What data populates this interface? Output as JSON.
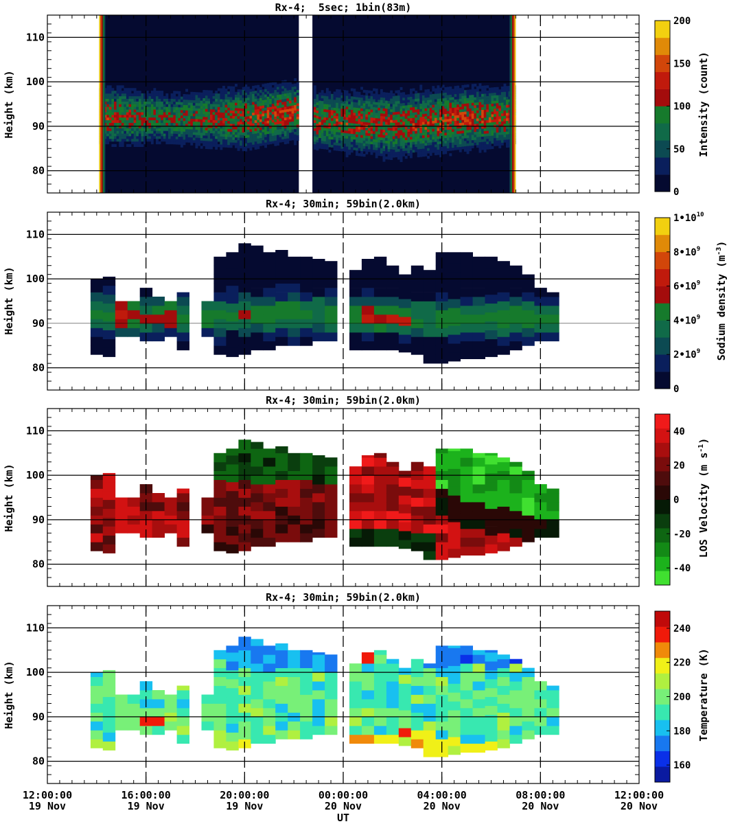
{
  "x_axis": {
    "label": "UT",
    "ticks": [
      {
        "time": "12:00:00",
        "date": "19 Nov",
        "hour": 0
      },
      {
        "time": "16:00:00",
        "date": "19 Nov",
        "hour": 4
      },
      {
        "time": "20:00:00",
        "date": "19 Nov",
        "hour": 8
      },
      {
        "time": "00:00:00",
        "date": "20 Nov",
        "hour": 12
      },
      {
        "time": "04:00:00",
        "date": "20 Nov",
        "hour": 16
      },
      {
        "time": "08:00:00",
        "date": "20 Nov",
        "hour": 20
      },
      {
        "time": "12:00:00",
        "date": "20 Nov",
        "hour": 24
      }
    ]
  },
  "chart_data": [
    {
      "type": "heatmap",
      "title": "Rx-4;  5sec; 1bin(83m)",
      "ylabel": "Height (km)",
      "ylim": [
        75,
        115
      ],
      "yticks": [
        "80",
        "90",
        "100",
        "110"
      ],
      "colorbar": {
        "label": "Intensity (count)",
        "range": [
          0,
          200
        ],
        "ticks": [
          {
            "v": 0,
            "t": "0"
          },
          {
            "v": 50,
            "t": "50"
          },
          {
            "v": 100,
            "t": "100"
          },
          {
            "v": 150,
            "t": "150"
          },
          {
            "v": 200,
            "t": "200"
          }
        ],
        "colors": [
          "#050a30",
          "#0a1f5c",
          "#0c4a52",
          "#106a48",
          "#167a2c",
          "#a40c0c",
          "#c01a0c",
          "#d2460a",
          "#e08a08",
          "#f2d010"
        ]
      },
      "data_window_hours": [
        2.1,
        19.0
      ],
      "gap_hours": [
        10.2,
        10.75
      ],
      "layer_profile": [
        {
          "hour": 2.5,
          "top_km": 98.0,
          "bottom_km": 86.0,
          "peak": 120
        },
        {
          "hour": 5.0,
          "top_km": 97.0,
          "bottom_km": 86.0,
          "peak": 95
        },
        {
          "hour": 8.0,
          "top_km": 98.0,
          "bottom_km": 85.0,
          "peak": 120
        },
        {
          "hour": 10.0,
          "top_km": 99.0,
          "bottom_km": 87.0,
          "peak": 130
        },
        {
          "hour": 11.0,
          "top_km": 97.0,
          "bottom_km": 85.0,
          "peak": 120
        },
        {
          "hour": 14.0,
          "top_km": 97.0,
          "bottom_km": 83.0,
          "peak": 120
        },
        {
          "hour": 17.0,
          "top_km": 98.0,
          "bottom_km": 85.0,
          "peak": 130
        },
        {
          "hour": 18.9,
          "top_km": 98.0,
          "bottom_km": 86.0,
          "peak": 120
        }
      ]
    },
    {
      "type": "heatmap",
      "title": "Rx-4; 30min; 59bin(2.0km)",
      "ylabel": "Height (km)",
      "ylim": [
        75,
        115
      ],
      "yticks": [
        "80",
        "90",
        "100",
        "110"
      ],
      "colorbar": {
        "label": "Sodium density (m^-3)",
        "range": [
          0,
          10000000000
        ],
        "ticks": [
          {
            "v": 0,
            "t": "0"
          },
          {
            "v": 2000000000,
            "t": "2•10^9"
          },
          {
            "v": 4000000000,
            "t": "4•10^9"
          },
          {
            "v": 6000000000,
            "t": "6•10^9"
          },
          {
            "v": 8000000000,
            "t": "8•10^9"
          },
          {
            "v": 10000000000,
            "t": "1•10^10"
          }
        ],
        "colors": [
          "#050a30",
          "#0a1f5c",
          "#0c4a52",
          "#106a48",
          "#167a2c",
          "#a40c0c",
          "#c01a0c",
          "#d2460a",
          "#e08a08",
          "#f2d010"
        ]
      },
      "field": "density",
      "column_width_hours": 0.5,
      "columns": [
        {
          "hour": 2.0,
          "bottom_km": 83,
          "top_km": 100
        },
        {
          "hour": 2.5,
          "bottom_km": 82.5,
          "top_km": 100.5
        },
        {
          "hour": 3.0,
          "bottom_km": 87,
          "top_km": 95
        },
        {
          "hour": 3.5,
          "bottom_km": 87,
          "top_km": 95
        },
        {
          "hour": 4.0,
          "bottom_km": 86,
          "top_km": 98
        },
        {
          "hour": 4.5,
          "bottom_km": 86,
          "top_km": 96
        },
        {
          "hour": 5.0,
          "bottom_km": 87,
          "top_km": 95
        },
        {
          "hour": 5.5,
          "bottom_km": 84,
          "top_km": 97
        },
        {
          "hour": 6.5,
          "bottom_km": 87,
          "top_km": 95
        },
        {
          "hour": 7.0,
          "bottom_km": 83,
          "top_km": 105
        },
        {
          "hour": 7.5,
          "bottom_km": 82.5,
          "top_km": 106
        },
        {
          "hour": 8.0,
          "bottom_km": 83,
          "top_km": 108
        },
        {
          "hour": 8.5,
          "bottom_km": 84,
          "top_km": 107.5
        },
        {
          "hour": 9.0,
          "bottom_km": 84,
          "top_km": 106
        },
        {
          "hour": 9.5,
          "bottom_km": 85,
          "top_km": 106.5
        },
        {
          "hour": 10.0,
          "bottom_km": 85,
          "top_km": 105
        },
        {
          "hour": 10.5,
          "bottom_km": 85,
          "top_km": 105
        },
        {
          "hour": 11.0,
          "bottom_km": 86,
          "top_km": 104.5
        },
        {
          "hour": 11.5,
          "bottom_km": 86,
          "top_km": 104
        },
        {
          "hour": 12.5,
          "bottom_km": 84,
          "top_km": 102
        },
        {
          "hour": 13.0,
          "bottom_km": 84,
          "top_km": 104.5
        },
        {
          "hour": 13.5,
          "bottom_km": 84,
          "top_km": 105
        },
        {
          "hour": 14.0,
          "bottom_km": 84,
          "top_km": 103
        },
        {
          "hour": 14.5,
          "bottom_km": 83.5,
          "top_km": 101
        },
        {
          "hour": 15.0,
          "bottom_km": 83,
          "top_km": 103
        },
        {
          "hour": 15.5,
          "bottom_km": 81,
          "top_km": 102
        },
        {
          "hour": 16.0,
          "bottom_km": 81,
          "top_km": 106
        },
        {
          "hour": 16.5,
          "bottom_km": 81.5,
          "top_km": 106
        },
        {
          "hour": 17.0,
          "bottom_km": 82,
          "top_km": 106
        },
        {
          "hour": 17.5,
          "bottom_km": 82,
          "top_km": 105
        },
        {
          "hour": 18.0,
          "bottom_km": 82.5,
          "top_km": 105
        },
        {
          "hour": 18.5,
          "bottom_km": 83,
          "top_km": 104
        },
        {
          "hour": 19.0,
          "bottom_km": 84,
          "top_km": 103
        },
        {
          "hour": 19.5,
          "bottom_km": 85,
          "top_km": 101
        },
        {
          "hour": 20.0,
          "bottom_km": 86,
          "top_km": 98
        },
        {
          "hour": 20.5,
          "bottom_km": 86,
          "top_km": 97
        }
      ]
    },
    {
      "type": "heatmap",
      "title": "Rx-4; 30min; 59bin(2.0km)",
      "ylabel": "Height (km)",
      "ylim": [
        75,
        115
      ],
      "yticks": [
        "80",
        "90",
        "100",
        "110"
      ],
      "colorbar": {
        "label": "LOS Velocity (m s^-1)",
        "range": [
          -50,
          50
        ],
        "ticks": [
          {
            "v": -40,
            "t": "-40"
          },
          {
            "v": -20,
            "t": "-20"
          },
          {
            "v": 0,
            "t": "0"
          },
          {
            "v": 20,
            "t": "20"
          },
          {
            "v": 40,
            "t": "40"
          }
        ],
        "colors": [
          "#40e030",
          "#1cb21c",
          "#138a16",
          "#0e6612",
          "#0a3e0e",
          "#061a06",
          "#2a0806",
          "#4e0c0c",
          "#7a0c0c",
          "#a80e0e",
          "#d31212",
          "#f01a1a"
        ]
      },
      "field": "velocity",
      "column_width_hours": 0.5,
      "columns": [
        {
          "hour": 2.0,
          "bottom_km": 83,
          "top_km": 100
        },
        {
          "hour": 2.5,
          "bottom_km": 82.5,
          "top_km": 100.5
        },
        {
          "hour": 3.0,
          "bottom_km": 87,
          "top_km": 95
        },
        {
          "hour": 3.5,
          "bottom_km": 87,
          "top_km": 95
        },
        {
          "hour": 4.0,
          "bottom_km": 86,
          "top_km": 98
        },
        {
          "hour": 4.5,
          "bottom_km": 86,
          "top_km": 96
        },
        {
          "hour": 5.0,
          "bottom_km": 87,
          "top_km": 95
        },
        {
          "hour": 5.5,
          "bottom_km": 84,
          "top_km": 97
        },
        {
          "hour": 6.5,
          "bottom_km": 87,
          "top_km": 95
        },
        {
          "hour": 7.0,
          "bottom_km": 83,
          "top_km": 105
        },
        {
          "hour": 7.5,
          "bottom_km": 82.5,
          "top_km": 106
        },
        {
          "hour": 8.0,
          "bottom_km": 83,
          "top_km": 108
        },
        {
          "hour": 8.5,
          "bottom_km": 84,
          "top_km": 107.5
        },
        {
          "hour": 9.0,
          "bottom_km": 84,
          "top_km": 106
        },
        {
          "hour": 9.5,
          "bottom_km": 85,
          "top_km": 106.5
        },
        {
          "hour": 10.0,
          "bottom_km": 85,
          "top_km": 105
        },
        {
          "hour": 10.5,
          "bottom_km": 85,
          "top_km": 105
        },
        {
          "hour": 11.0,
          "bottom_km": 86,
          "top_km": 104.5
        },
        {
          "hour": 11.5,
          "bottom_km": 86,
          "top_km": 104
        },
        {
          "hour": 12.5,
          "bottom_km": 84,
          "top_km": 102
        },
        {
          "hour": 13.0,
          "bottom_km": 84,
          "top_km": 104.5
        },
        {
          "hour": 13.5,
          "bottom_km": 84,
          "top_km": 105
        },
        {
          "hour": 14.0,
          "bottom_km": 84,
          "top_km": 103
        },
        {
          "hour": 14.5,
          "bottom_km": 83.5,
          "top_km": 101
        },
        {
          "hour": 15.0,
          "bottom_km": 83,
          "top_km": 103
        },
        {
          "hour": 15.5,
          "bottom_km": 81,
          "top_km": 102
        },
        {
          "hour": 16.0,
          "bottom_km": 81,
          "top_km": 106
        },
        {
          "hour": 16.5,
          "bottom_km": 81.5,
          "top_km": 106
        },
        {
          "hour": 17.0,
          "bottom_km": 82,
          "top_km": 106
        },
        {
          "hour": 17.5,
          "bottom_km": 82,
          "top_km": 105
        },
        {
          "hour": 18.0,
          "bottom_km": 82.5,
          "top_km": 105
        },
        {
          "hour": 18.5,
          "bottom_km": 83,
          "top_km": 104
        },
        {
          "hour": 19.0,
          "bottom_km": 84,
          "top_km": 103
        },
        {
          "hour": 19.5,
          "bottom_km": 85,
          "top_km": 101
        },
        {
          "hour": 20.0,
          "bottom_km": 86,
          "top_km": 98
        },
        {
          "hour": 20.5,
          "bottom_km": 86,
          "top_km": 97
        }
      ]
    },
    {
      "type": "heatmap",
      "title": "Rx-4; 30min; 59bin(2.0km)",
      "ylabel": "Height (km)",
      "ylim": [
        75,
        115
      ],
      "yticks": [
        "80",
        "90",
        "100",
        "110"
      ],
      "colorbar": {
        "label": "Temperature (K)",
        "range": [
          150,
          250
        ],
        "ticks": [
          {
            "v": 160,
            "t": "160"
          },
          {
            "v": 180,
            "t": "180"
          },
          {
            "v": 200,
            "t": "200"
          },
          {
            "v": 220,
            "t": "220"
          },
          {
            "v": 240,
            "t": "240"
          }
        ],
        "colors": [
          "#0a1aa0",
          "#0a30e8",
          "#1878f0",
          "#18c0f0",
          "#38e8b0",
          "#78f078",
          "#b0f040",
          "#f0f018",
          "#f08a0a",
          "#f01a0a",
          "#c00a0a"
        ]
      },
      "field": "temperature",
      "column_width_hours": 0.5,
      "columns": [
        {
          "hour": 2.0,
          "bottom_km": 83,
          "top_km": 100
        },
        {
          "hour": 2.5,
          "bottom_km": 82.5,
          "top_km": 100.5
        },
        {
          "hour": 3.0,
          "bottom_km": 87,
          "top_km": 95
        },
        {
          "hour": 3.5,
          "bottom_km": 87,
          "top_km": 95
        },
        {
          "hour": 4.0,
          "bottom_km": 86,
          "top_km": 98
        },
        {
          "hour": 4.5,
          "bottom_km": 86,
          "top_km": 96
        },
        {
          "hour": 5.0,
          "bottom_km": 87,
          "top_km": 95
        },
        {
          "hour": 5.5,
          "bottom_km": 84,
          "top_km": 97
        },
        {
          "hour": 6.5,
          "bottom_km": 87,
          "top_km": 95
        },
        {
          "hour": 7.0,
          "bottom_km": 83,
          "top_km": 105
        },
        {
          "hour": 7.5,
          "bottom_km": 82.5,
          "top_km": 106
        },
        {
          "hour": 8.0,
          "bottom_km": 83,
          "top_km": 108
        },
        {
          "hour": 8.5,
          "bottom_km": 84,
          "top_km": 107.5
        },
        {
          "hour": 9.0,
          "bottom_km": 84,
          "top_km": 106
        },
        {
          "hour": 9.5,
          "bottom_km": 85,
          "top_km": 106.5
        },
        {
          "hour": 10.0,
          "bottom_km": 85,
          "top_km": 105
        },
        {
          "hour": 10.5,
          "bottom_km": 85,
          "top_km": 105
        },
        {
          "hour": 11.0,
          "bottom_km": 86,
          "top_km": 104.5
        },
        {
          "hour": 11.5,
          "bottom_km": 86,
          "top_km": 104
        },
        {
          "hour": 12.5,
          "bottom_km": 84,
          "top_km": 102
        },
        {
          "hour": 13.0,
          "bottom_km": 84,
          "top_km": 104.5
        },
        {
          "hour": 13.5,
          "bottom_km": 84,
          "top_km": 105
        },
        {
          "hour": 14.0,
          "bottom_km": 84,
          "top_km": 103
        },
        {
          "hour": 14.5,
          "bottom_km": 83.5,
          "top_km": 101
        },
        {
          "hour": 15.0,
          "bottom_km": 83,
          "top_km": 103
        },
        {
          "hour": 15.5,
          "bottom_km": 81,
          "top_km": 102
        },
        {
          "hour": 16.0,
          "bottom_km": 81,
          "top_km": 106
        },
        {
          "hour": 16.5,
          "bottom_km": 81.5,
          "top_km": 106
        },
        {
          "hour": 17.0,
          "bottom_km": 82,
          "top_km": 106
        },
        {
          "hour": 17.5,
          "bottom_km": 82,
          "top_km": 105
        },
        {
          "hour": 18.0,
          "bottom_km": 82.5,
          "top_km": 105
        },
        {
          "hour": 18.5,
          "bottom_km": 83,
          "top_km": 104
        },
        {
          "hour": 19.0,
          "bottom_km": 84,
          "top_km": 103
        },
        {
          "hour": 19.5,
          "bottom_km": 85,
          "top_km": 101
        },
        {
          "hour": 20.0,
          "bottom_km": 86,
          "top_km": 98
        },
        {
          "hour": 20.5,
          "bottom_km": 86,
          "top_km": 97
        }
      ]
    }
  ]
}
